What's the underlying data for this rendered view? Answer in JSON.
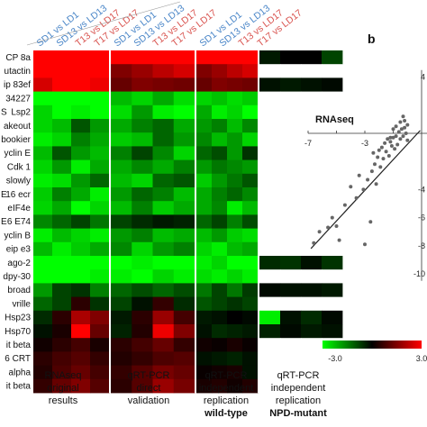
{
  "chart_data": [
    {
      "type": "heatmap",
      "row_labels": [
        "CP 8a",
        "utactin",
        "ip 83ef",
        "34227",
        "Lsp2",
        "akeout",
        "bookier",
        "yclin E",
        "Cdk 1",
        "slowly",
        "16 ecr",
        "eIF4e",
        "6 E74",
        "yclin B",
        "eip e3",
        "ago-2",
        "dpy-30",
        "broad",
        "vrille",
        "Hsp23",
        "Hsp70",
        "it beta",
        "6 CRT",
        "alpha",
        "it beta"
      ],
      "row_prefix": {
        "4": "S",
        "10": "E",
        "12": "E"
      },
      "column_groups": [
        {
          "lines": [
            "RNAseq",
            "original",
            "results"
          ],
          "bold_line": null
        },
        {
          "lines": [
            "qRT-PCR",
            "direct",
            "validation"
          ],
          "bold_line": null
        },
        {
          "lines": [
            "qRT-PCR",
            "independent",
            "replication",
            "wild-type"
          ],
          "bold_line": 3
        },
        {
          "lines": [
            "qRT-PCR",
            "independent",
            "replication",
            "NPD-mutant"
          ],
          "bold_line": 3
        }
      ],
      "column_labels": [
        {
          "text": "SD1 vs LD1",
          "color": "#4a86c8"
        },
        {
          "text": "SD13 vs LD13",
          "color": "#4a86c8"
        },
        {
          "text": "T13 vs LD17",
          "color": "#d9534f"
        },
        {
          "text": "T17 vs LD17",
          "color": "#d9534f"
        }
      ],
      "values": [
        [
          [
            3,
            3,
            3,
            3
          ],
          [
            3,
            3,
            3,
            3
          ],
          [
            3,
            3,
            3,
            3
          ],
          [
            -0.3,
            0,
            0,
            -0.8
          ]
        ],
        [
          [
            3,
            3,
            3,
            3
          ],
          [
            1.5,
            1.8,
            2.2,
            2.5
          ],
          [
            1.5,
            1.8,
            2.2,
            2.5
          ],
          [
            null,
            null,
            null,
            null
          ]
        ],
        [
          [
            2.5,
            3,
            3,
            2.8
          ],
          [
            1.2,
            1.5,
            1.4,
            1.3
          ],
          [
            1.2,
            1.5,
            1.4,
            1.3
          ],
          [
            -0.2,
            -0.3,
            -0.2,
            -0.1
          ]
        ],
        [
          [
            -3,
            -3,
            -3,
            -3
          ],
          [
            -2.2,
            -2.5,
            -2,
            -2.6
          ],
          [
            -2.5,
            -2.3,
            -2.6,
            -2.4
          ],
          [
            null,
            null,
            null,
            null
          ]
        ],
        [
          [
            -2.5,
            -3,
            -2.8,
            -3
          ],
          [
            -2.6,
            -1.8,
            -2.8,
            -3
          ],
          [
            -2,
            -2.8,
            -2.5,
            -3
          ],
          [
            null,
            null,
            null,
            null
          ]
        ],
        [
          [
            -2.5,
            -2.2,
            -1,
            -1.8
          ],
          [
            -2,
            -1.5,
            -1.2,
            -2
          ],
          [
            -1.8,
            -1.5,
            -2.2,
            -1.6
          ],
          [
            null,
            null,
            null,
            null
          ]
        ],
        [
          [
            -2.8,
            -2.5,
            -1.5,
            -2
          ],
          [
            -2.4,
            -2.2,
            -1.2,
            -1.8
          ],
          [
            -1.6,
            -2.2,
            -1.8,
            -2.5
          ],
          [
            null,
            null,
            null,
            null
          ]
        ],
        [
          [
            -2.2,
            -1,
            -1.8,
            -2.2
          ],
          [
            -1.5,
            -0.8,
            -1.6,
            -2.5
          ],
          [
            -1.2,
            -0.9,
            -1.8,
            -0.6
          ],
          [
            null,
            null,
            null,
            null
          ]
        ],
        [
          [
            -2.5,
            -1.8,
            -2.8,
            -2
          ],
          [
            -2,
            -1.6,
            -2,
            -1.5
          ],
          [
            -1.8,
            -1.4,
            -1.6,
            -1.8
          ],
          [
            null,
            null,
            null,
            null
          ]
        ],
        [
          [
            -2.8,
            -2.6,
            -1.8,
            -1.2
          ],
          [
            -2.2,
            -2.5,
            -1.2,
            -1
          ],
          [
            -2.4,
            -1.8,
            -1.4,
            -1
          ],
          [
            null,
            null,
            null,
            null
          ]
        ],
        [
          [
            -2.4,
            -1.5,
            -2,
            -2.8
          ],
          [
            -1.8,
            -1.2,
            -1.5,
            -2.2
          ],
          [
            -2,
            -1.5,
            -1.2,
            -1.6
          ],
          [
            null,
            null,
            null,
            null
          ]
        ],
        [
          [
            -2.5,
            -2,
            -3,
            -2.5
          ],
          [
            -2.2,
            -1.5,
            -2.4,
            -2
          ],
          [
            -2,
            -1.6,
            -2.8,
            -2.2
          ],
          [
            null,
            null,
            null,
            null
          ]
        ],
        [
          [
            -1.6,
            -1.2,
            -0.8,
            -1.4
          ],
          [
            -0.8,
            -0.5,
            -0.3,
            -0.4
          ],
          [
            -1.2,
            -0.8,
            -1.5,
            -0.9
          ],
          [
            null,
            null,
            null,
            null
          ]
        ],
        [
          [
            -2.8,
            -2.2,
            -2.5,
            -2.8
          ],
          [
            -1.8,
            -1.5,
            -2.2,
            -2
          ],
          [
            -2.2,
            -1.8,
            -2.4,
            -2.6
          ],
          [
            null,
            null,
            null,
            null
          ]
        ],
        [
          [
            -2.2,
            -2.8,
            -2.4,
            -2
          ],
          [
            -1.6,
            -2.5,
            -1.8,
            -1.5
          ],
          [
            -2.5,
            -2.8,
            -2.2,
            -2
          ],
          [
            null,
            null,
            null,
            null
          ]
        ],
        [
          [
            -3,
            -3,
            -3,
            -3
          ],
          [
            -3,
            -2.8,
            -3,
            -3
          ],
          [
            -2.8,
            -2.5,
            -3,
            -3
          ],
          [
            -0.5,
            -0.6,
            -0.2,
            -0.6
          ]
        ],
        [
          [
            -3,
            -3,
            -3,
            -2.8
          ],
          [
            -2.8,
            -3,
            -2.5,
            -2.8
          ],
          [
            -2.6,
            -2.8,
            -2.5,
            -2.8
          ],
          [
            null,
            null,
            null,
            null
          ]
        ],
        [
          [
            -1.8,
            -0.8,
            -0.6,
            -1.5
          ],
          [
            -1.2,
            -0.9,
            -1.2,
            -0.9
          ],
          [
            -1.4,
            -0.8,
            -1.4,
            -0.7
          ],
          [
            -0.1,
            -0.2,
            -0.2,
            -0.3
          ]
        ],
        [
          [
            -1.2,
            -0.8,
            0.5,
            -0.6
          ],
          [
            -0.8,
            -0.2,
            0.6,
            -0.5
          ],
          [
            -1,
            -0.8,
            -0.6,
            -0.8
          ],
          [
            null,
            null,
            null,
            null
          ]
        ],
        [
          [
            -0.5,
            0.5,
            2,
            1.5
          ],
          [
            -0.3,
            0.5,
            1.8,
            0.8
          ],
          [
            -0.3,
            -0.2,
            0,
            -0.1
          ],
          [
            -2.8,
            -0.2,
            -0.5,
            -0.1
          ]
        ],
        [
          [
            -0.2,
            0.3,
            3,
            1.2
          ],
          [
            -0.4,
            0.4,
            2.8,
            1.5
          ],
          [
            -0.2,
            -0.5,
            -0.4,
            -0.3
          ],
          [
            -0.4,
            -0.1,
            -0.3,
            -0.2
          ]
        ],
        [
          [
            0.2,
            0.5,
            0.8,
            0.3
          ],
          [
            0.5,
            0.8,
            1.2,
            0.6
          ],
          [
            0.2,
            0.1,
            0.3,
            0.1
          ],
          [
            null,
            null,
            null,
            null
          ]
        ],
        [
          [
            0.5,
            0.8,
            1,
            0.6
          ],
          [
            0.4,
            0.6,
            0.9,
            1
          ],
          [
            -0.2,
            -0.3,
            -0.4,
            -0.2
          ],
          [
            null,
            null,
            null,
            null
          ]
        ],
        [
          [
            0.4,
            0.9,
            1.2,
            0.8
          ],
          [
            0.6,
            1,
            1.4,
            1.2
          ],
          [
            0.1,
            0.2,
            0.3,
            -0.2
          ],
          [
            null,
            null,
            null,
            null
          ]
        ],
        [
          [
            0.6,
            1.2,
            1.5,
            1
          ],
          [
            0.5,
            1,
            1.8,
            1.4
          ],
          [
            0.3,
            0.4,
            0.2,
            0.4
          ],
          [
            null,
            null,
            null,
            null
          ]
        ]
      ],
      "colors": {
        "up": "#ff0000",
        "zero": "#000000",
        "down": "#00ff00",
        "missing": "#ffffff"
      },
      "colorbar": {
        "min_label": "-3.0",
        "max_label": "3.0"
      }
    },
    {
      "type": "scatter",
      "panel_label": "b",
      "title": "RNAseq",
      "x_ticks": [
        -7,
        -5,
        -3,
        -1
      ],
      "y_ticks": [
        4,
        2,
        0,
        -2,
        -4,
        -6,
        -8,
        -10
      ],
      "x_tick_labels": [
        "-7",
        "",
        "-3",
        ""
      ],
      "y_tick_labels": [
        "4",
        "",
        "",
        "",
        "-4",
        "-6",
        "-8",
        "-10"
      ],
      "xlim": [
        -7.2,
        1.2
      ],
      "points": [
        [
          -6.6,
          -7.8
        ],
        [
          -6.2,
          -7.0
        ],
        [
          -5.6,
          -6.7
        ],
        [
          -5.3,
          -6.0
        ],
        [
          -5.0,
          -6.6
        ],
        [
          -4.8,
          -7.6
        ],
        [
          -4.4,
          -5.1
        ],
        [
          -4.0,
          -3.8
        ],
        [
          -3.6,
          -4.6
        ],
        [
          -3.4,
          -3.0
        ],
        [
          -3.1,
          -4.0
        ],
        [
          -3.0,
          -7.9
        ],
        [
          -2.8,
          -3.3
        ],
        [
          -2.6,
          -6.3
        ],
        [
          -2.5,
          -2.7
        ],
        [
          -2.3,
          -2.2
        ],
        [
          -2.2,
          -3.6
        ],
        [
          -2.1,
          -1.7
        ],
        [
          -2.0,
          -1.2
        ],
        [
          -1.9,
          -2.4
        ],
        [
          -1.8,
          -1.0
        ],
        [
          -1.7,
          -1.8
        ],
        [
          -1.6,
          -0.7
        ],
        [
          -1.5,
          -1.3
        ],
        [
          -1.4,
          -0.4
        ],
        [
          -1.3,
          -1.6
        ],
        [
          -1.2,
          -0.6
        ],
        [
          -1.1,
          -0.9
        ],
        [
          -1.0,
          -0.3
        ],
        [
          -0.9,
          -1.1
        ],
        [
          -0.8,
          -0.2
        ],
        [
          -0.7,
          -0.8
        ],
        [
          -0.6,
          0.1
        ],
        [
          -0.5,
          -0.4
        ],
        [
          -0.4,
          0.3
        ],
        [
          -0.3,
          -0.2
        ],
        [
          -0.2,
          0.4
        ],
        [
          -0.1,
          0.0
        ],
        [
          0.0,
          0.6
        ],
        [
          -0.5,
          0.8
        ],
        [
          -0.8,
          0.5
        ],
        [
          -0.3,
          1.2
        ],
        [
          -1.0,
          0.3
        ],
        [
          -0.2,
          0.9
        ],
        [
          0.0,
          -0.5
        ],
        [
          -2.4,
          -1.4
        ],
        [
          -1.2,
          -0.3
        ]
      ],
      "fit_line": {
        "x": [
          -6.8,
          0.9
        ],
        "y": [
          -8.2,
          0.2
        ]
      }
    }
  ]
}
